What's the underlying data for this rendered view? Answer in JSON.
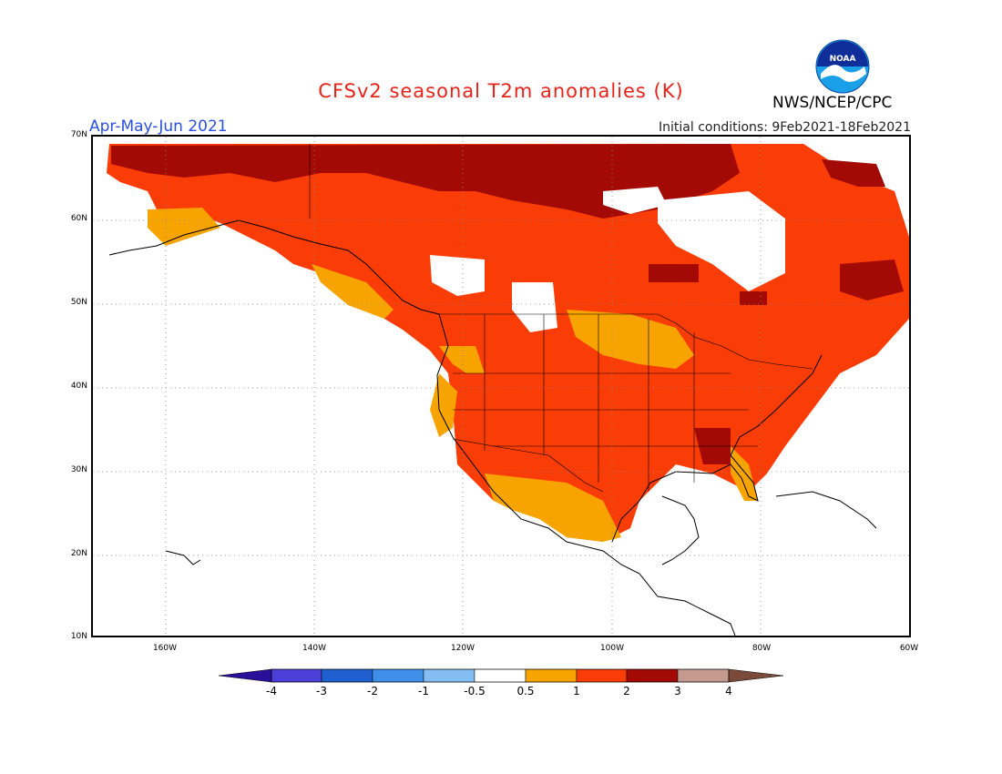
{
  "title": "CFSv2 seasonal T2m anomalies (K)",
  "period": "Apr-May-Jun 2021",
  "initial_conditions": "Initial conditions: 9Feb2021-18Feb2021",
  "agency": "NWS/NCEP/CPC",
  "logo_text": "NOAA",
  "colors": {
    "title": "#e8231a",
    "period": "#2b4fe0",
    "c_m4": "#2a0f9a",
    "c_m3": "#4a3fd6",
    "c_m2": "#1f5fcf",
    "c_m1": "#3f8fe8",
    "c_m05": "#84bdf2",
    "c_0": "#ffffff",
    "c_05": "#f7a400",
    "c_1": "#fa3d07",
    "c_2": "#a30a06",
    "c_3": "#c49a8f",
    "c_4": "#7a4a3a"
  },
  "lat_labels": [
    "70N",
    "60N",
    "50N",
    "40N",
    "30N",
    "20N",
    "10N"
  ],
  "lon_labels": [
    "160W",
    "140W",
    "120W",
    "100W",
    "80W",
    "60W"
  ],
  "legend_labels": [
    "-4",
    "-3",
    "-2",
    "-1",
    "-0.5",
    "0.5",
    "1",
    "2",
    "3",
    "4"
  ]
}
